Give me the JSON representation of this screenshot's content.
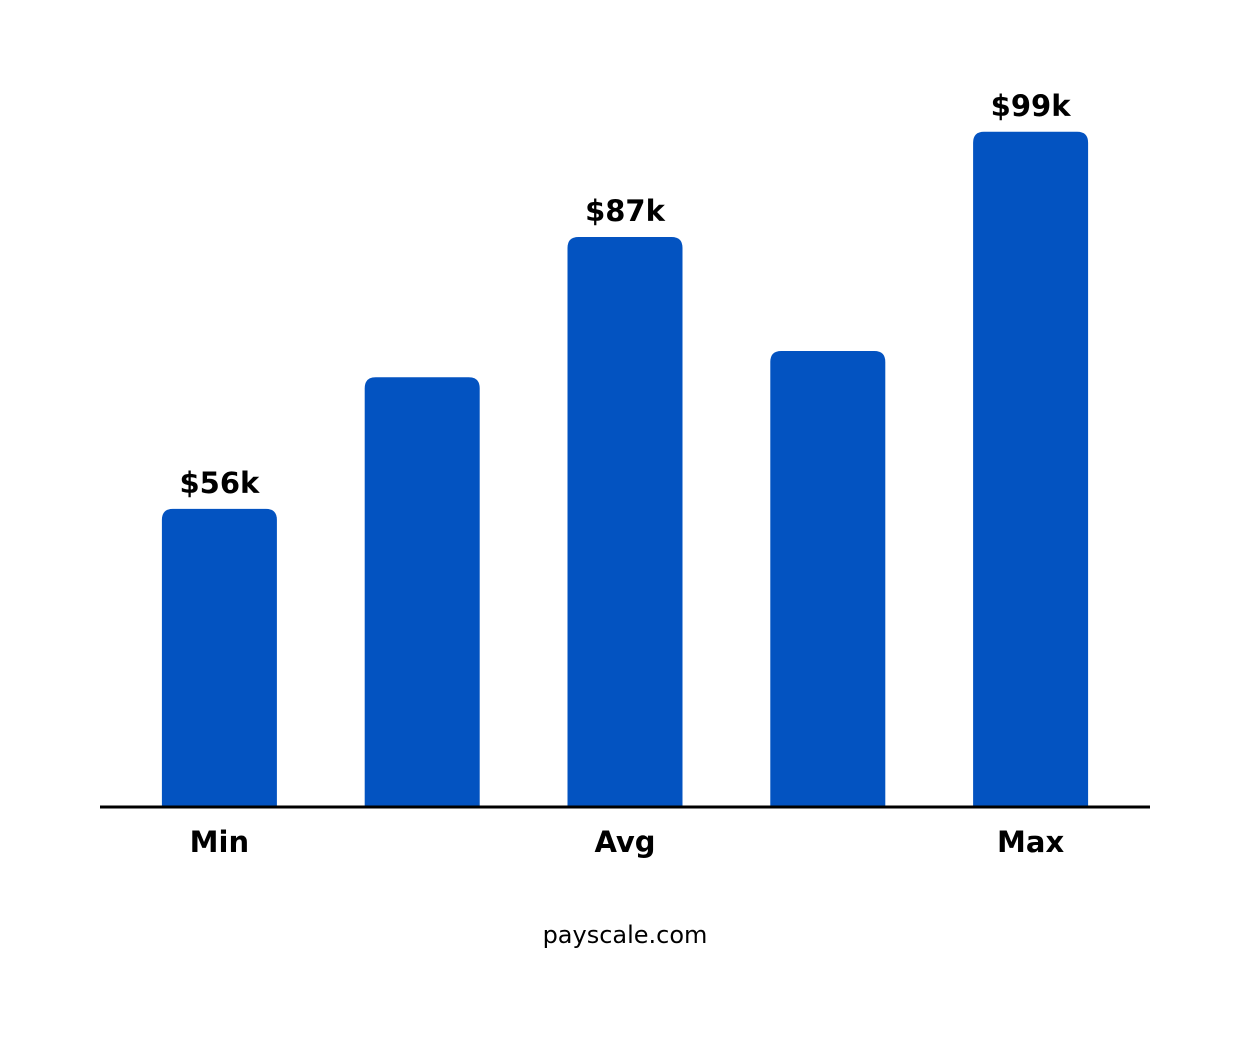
{
  "chart_data": {
    "type": "bar",
    "categories": [
      "Min",
      null,
      "Avg",
      null,
      "Max"
    ],
    "values": [
      56,
      71,
      87,
      74,
      99
    ],
    "value_labels": [
      "$56k",
      null,
      "$87k",
      null,
      "$99k"
    ],
    "color": "#0353c1",
    "ylim": [
      22,
      100
    ]
  },
  "source": "payscale.com"
}
